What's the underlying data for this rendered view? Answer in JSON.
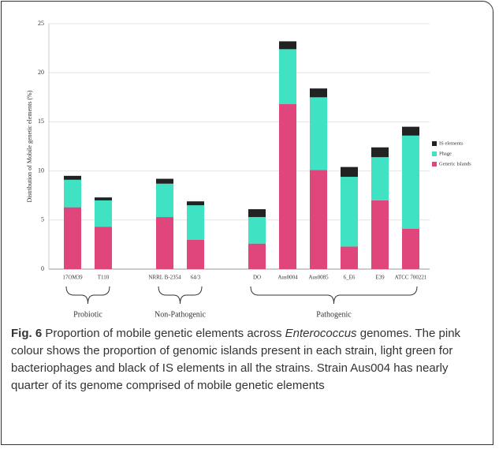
{
  "chart_data": {
    "type": "stacked-bar",
    "y_label": "Distribution of Mobile genetic elements (%)",
    "categories": [
      "17OM39",
      "T110",
      null,
      "NRRL B-2354",
      "64/3",
      null,
      "DO",
      "Aus0004",
      "Aus0085",
      "6_E6",
      "E39",
      "ATCC 700221"
    ],
    "series": [
      {
        "name": "Generic Islands",
        "color": "#e0457b",
        "values": [
          6.3,
          4.3,
          null,
          5.3,
          3.0,
          null,
          2.6,
          16.8,
          10.1,
          2.3,
          7.0,
          4.1
        ]
      },
      {
        "name": "Phage",
        "color": "#3fe3c4",
        "values": [
          2.8,
          2.7,
          null,
          3.4,
          3.5,
          null,
          2.7,
          5.6,
          7.4,
          7.1,
          4.4,
          9.5
        ]
      },
      {
        "name": "IS elements",
        "color": "#222222",
        "values": [
          0.4,
          0.3,
          null,
          0.5,
          0.4,
          null,
          0.8,
          0.8,
          0.9,
          1.0,
          1.0,
          0.9
        ]
      }
    ],
    "groups": [
      "Probiotic",
      "Non-Pathogenic",
      "Pathogenic"
    ],
    "ylim": [
      0,
      25
    ],
    "yticks": [
      0,
      5,
      10,
      15,
      20,
      25
    ],
    "grid": true,
    "legend": "right"
  },
  "caption": {
    "label": "Fig. 6",
    "text_before": " Proportion of mobile genetic elements across ",
    "italic": "Enterococcus",
    "text_after": " genomes. The pink colour shows the proportion of genomic islands present in each strain, light green for bacteriophages and black of IS elements in all the strains. Strain Aus004 has nearly quarter of its genome comprised of mobile genetic elements"
  }
}
